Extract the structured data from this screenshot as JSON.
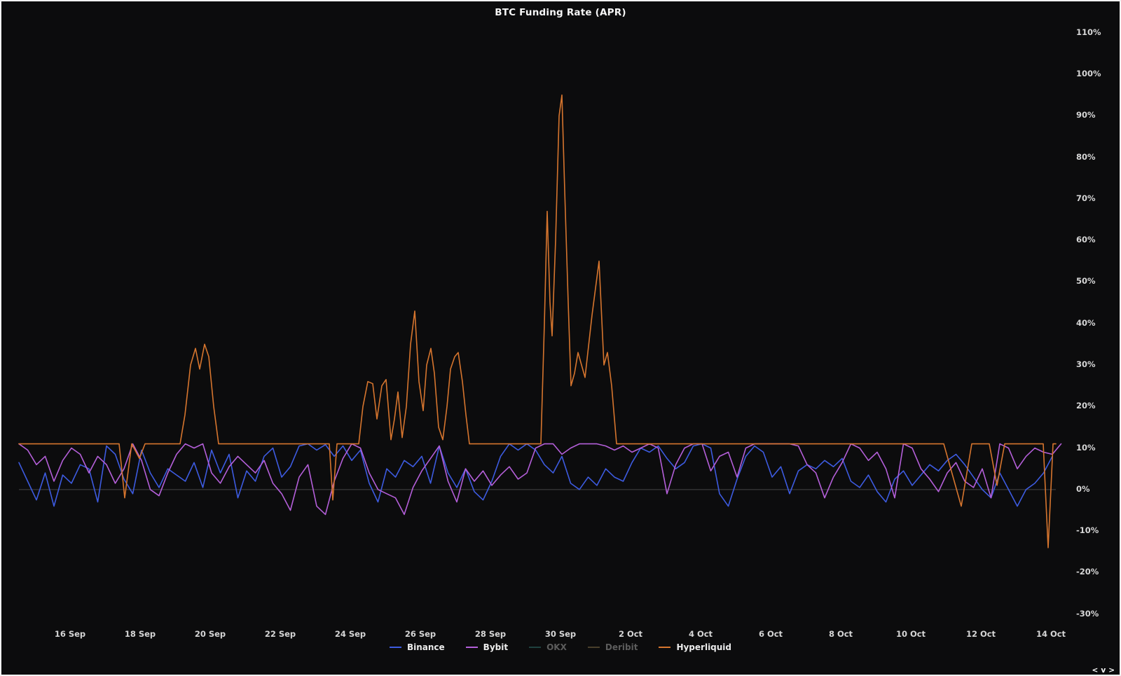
{
  "page": {
    "title": "BTC Funding Rate (APR)"
  },
  "nav": {
    "left": "<",
    "down": "v",
    "right": ">"
  },
  "chart_data": {
    "type": "line",
    "title": "BTC Funding Rate (APR)",
    "background": "#0c0c0d",
    "legend_position": "bottom",
    "axis_text_color": "#d6d6d6",
    "dim_text_color": "#5c5c5c",
    "zero_line_color": "#454545",
    "xlim": [
      -1.46,
      28.14
    ],
    "ylim": [
      -30.9,
      112.5
    ],
    "y_axis": {
      "unit": "%",
      "ticks": [
        110,
        100,
        90,
        80,
        70,
        60,
        50,
        40,
        30,
        20,
        10,
        0,
        -10,
        -20,
        -30
      ],
      "grid_at": [
        0
      ]
    },
    "x_axis": {
      "unit": "date",
      "ticks": [
        {
          "label": "16 Sep",
          "day": 0
        },
        {
          "label": "18 Sep",
          "day": 2
        },
        {
          "label": "20 Sep",
          "day": 4
        },
        {
          "label": "22 Sep",
          "day": 6
        },
        {
          "label": "24 Sep",
          "day": 8
        },
        {
          "label": "26 Sep",
          "day": 10
        },
        {
          "label": "28 Sep",
          "day": 12
        },
        {
          "label": "30 Sep",
          "day": 14
        },
        {
          "label": "2 Oct",
          "day": 16
        },
        {
          "label": "4 Oct",
          "day": 18
        },
        {
          "label": "6 Oct",
          "day": 20
        },
        {
          "label": "8 Oct",
          "day": 22
        },
        {
          "label": "10 Oct",
          "day": 24
        },
        {
          "label": "12 Oct",
          "day": 26
        },
        {
          "label": "14 Oct",
          "day": 28
        }
      ]
    },
    "series": [
      {
        "name": "Binance",
        "color": "#3d5be0",
        "visible": true,
        "sampling": {
          "x_start": -1.46,
          "x_step": 0.25
        },
        "values": [
          6.5,
          2,
          -2.5,
          4,
          -4,
          3.5,
          1.5,
          6,
          5,
          -3,
          10.5,
          8.5,
          2.5,
          -1,
          9.5,
          4,
          0.5,
          5,
          3.5,
          2,
          6.5,
          0.5,
          9.5,
          4,
          8.5,
          -2,
          4.5,
          2,
          8,
          10,
          3,
          5.5,
          10.5,
          11,
          9.5,
          10.8,
          8,
          10.5,
          7,
          9.5,
          1.5,
          -3,
          5,
          3,
          7,
          5.5,
          8,
          1.5,
          10.5,
          4,
          0.5,
          5,
          -0.5,
          -2.5,
          2,
          8,
          11,
          9.5,
          11,
          9.5,
          6,
          4,
          8,
          1.5,
          0,
          3,
          1,
          5,
          3,
          2,
          6.5,
          10,
          9,
          10.5,
          7.5,
          5,
          6.5,
          10.5,
          11,
          10,
          -1,
          -4,
          2.5,
          8,
          10.5,
          9,
          3,
          5.5,
          -1,
          4.5,
          6,
          5,
          7,
          5.5,
          7.5,
          2,
          0.5,
          3.5,
          -0.5,
          -3,
          2.5,
          4.5,
          1,
          3.5,
          6,
          4.5,
          7,
          8.5,
          6,
          3,
          0,
          -2,
          4,
          0,
          -4,
          0,
          1.5,
          4,
          8
        ]
      },
      {
        "name": "Bybit",
        "color": "#b45fd9",
        "visible": true,
        "sampling": {
          "x_start": -1.46,
          "x_step": 0.25
        },
        "values": [
          11,
          9.5,
          6,
          8,
          2,
          7,
          10,
          8.5,
          4,
          8,
          6,
          1.5,
          5,
          11,
          7,
          0,
          -1.5,
          4,
          8.5,
          11,
          10,
          11,
          4,
          1.5,
          5.5,
          8,
          6,
          4,
          7,
          1.5,
          -1,
          -5,
          3,
          6,
          -4,
          -6,
          2,
          7.5,
          11,
          10,
          4,
          0,
          -1,
          -2,
          -6,
          0.5,
          4.5,
          7.5,
          10.5,
          2,
          -3,
          5,
          2,
          4.5,
          1,
          3.5,
          5.5,
          2.5,
          4,
          10,
          11,
          11,
          8.5,
          10,
          11,
          11,
          11,
          10.5,
          9.5,
          10.5,
          9,
          10,
          11,
          10,
          -1,
          6,
          10,
          11,
          11,
          4.5,
          8,
          9,
          3,
          10,
          11,
          11,
          11,
          11,
          11,
          10.5,
          6,
          4,
          -2,
          3,
          6.5,
          11,
          10,
          7,
          9,
          5,
          -2,
          11,
          10,
          5,
          2.5,
          -0.5,
          4,
          6.5,
          2,
          0.5,
          5,
          -2,
          11,
          10,
          5,
          8,
          10,
          9,
          8.5,
          11
        ]
      },
      {
        "name": "OKX",
        "color": "#2f6e69",
        "visible": false,
        "values": []
      },
      {
        "name": "Deribit",
        "color": "#7c6a45",
        "visible": false,
        "values": []
      },
      {
        "name": "Hyperliquid",
        "color": "#d6752e",
        "visible": true,
        "points": [
          [
            -1.46,
            11
          ],
          [
            1.4,
            11
          ],
          [
            1.56,
            -2
          ],
          [
            1.76,
            11
          ],
          [
            1.98,
            7.5
          ],
          [
            2.14,
            11
          ],
          [
            3.14,
            11
          ],
          [
            3.28,
            18
          ],
          [
            3.44,
            30
          ],
          [
            3.58,
            34
          ],
          [
            3.7,
            29
          ],
          [
            3.84,
            35
          ],
          [
            3.96,
            32
          ],
          [
            4.1,
            20
          ],
          [
            4.24,
            11
          ],
          [
            7.4,
            11
          ],
          [
            7.5,
            -2.5
          ],
          [
            7.62,
            11
          ],
          [
            8.24,
            11
          ],
          [
            8.36,
            20
          ],
          [
            8.5,
            26
          ],
          [
            8.64,
            25.5
          ],
          [
            8.76,
            17
          ],
          [
            8.9,
            25
          ],
          [
            9.02,
            26.5
          ],
          [
            9.16,
            12
          ],
          [
            9.26,
            17
          ],
          [
            9.36,
            23.5
          ],
          [
            9.48,
            12.5
          ],
          [
            9.6,
            20
          ],
          [
            9.72,
            35
          ],
          [
            9.84,
            43
          ],
          [
            9.96,
            26
          ],
          [
            10.08,
            19
          ],
          [
            10.18,
            30
          ],
          [
            10.3,
            34
          ],
          [
            10.4,
            28
          ],
          [
            10.52,
            15
          ],
          [
            10.64,
            12
          ],
          [
            10.76,
            20
          ],
          [
            10.86,
            29
          ],
          [
            10.98,
            32
          ],
          [
            11.08,
            33
          ],
          [
            11.2,
            26
          ],
          [
            11.3,
            18
          ],
          [
            11.4,
            11
          ],
          [
            13.44,
            11
          ],
          [
            13.54,
            40
          ],
          [
            13.62,
            67
          ],
          [
            13.7,
            45
          ],
          [
            13.76,
            37
          ],
          [
            13.86,
            60
          ],
          [
            13.96,
            90
          ],
          [
            14.04,
            95
          ],
          [
            14.12,
            72
          ],
          [
            14.22,
            45
          ],
          [
            14.3,
            25
          ],
          [
            14.4,
            28
          ],
          [
            14.5,
            33
          ],
          [
            14.6,
            30
          ],
          [
            14.7,
            27
          ],
          [
            14.9,
            42
          ],
          [
            15.1,
            55
          ],
          [
            15.24,
            30
          ],
          [
            15.34,
            33
          ],
          [
            15.46,
            25
          ],
          [
            15.6,
            11
          ],
          [
            24.84,
            11
          ],
          [
            24.94,
            11
          ],
          [
            25.44,
            -4
          ],
          [
            25.74,
            11
          ],
          [
            26.24,
            11
          ],
          [
            26.46,
            1
          ],
          [
            26.68,
            11
          ],
          [
            27.78,
            11
          ],
          [
            27.92,
            -14
          ],
          [
            28.06,
            11
          ],
          [
            28.14,
            11
          ]
        ]
      }
    ]
  }
}
